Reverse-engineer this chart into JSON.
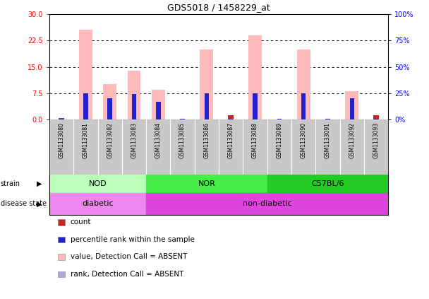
{
  "title": "GDS5018 / 1458229_at",
  "samples": [
    "GSM1133080",
    "GSM1133081",
    "GSM1133082",
    "GSM1133083",
    "GSM1133084",
    "GSM1133085",
    "GSM1133086",
    "GSM1133087",
    "GSM1133088",
    "GSM1133089",
    "GSM1133090",
    "GSM1133091",
    "GSM1133092",
    "GSM1133093"
  ],
  "count_values": [
    0.35,
    0.0,
    0.0,
    0.0,
    0.0,
    0.0,
    0.0,
    1.2,
    0.0,
    0.0,
    0.0,
    0.0,
    0.0,
    1.3
  ],
  "rank_values_pct": [
    0.5,
    25,
    20,
    24,
    17,
    1,
    25,
    1,
    25,
    1,
    25,
    0.5,
    20,
    1
  ],
  "value_absent": [
    0.0,
    25.5,
    10.0,
    14.0,
    8.5,
    0.0,
    20.0,
    0.0,
    24.0,
    0.0,
    20.0,
    0.0,
    8.0,
    0.0
  ],
  "rank_absent_pct": [
    0,
    0,
    0,
    0,
    0,
    0,
    0,
    0,
    0,
    0,
    0,
    0,
    0,
    0
  ],
  "ylim_left": [
    0,
    30
  ],
  "ylim_right": [
    0,
    100
  ],
  "yticks_left": [
    0,
    7.5,
    15,
    22.5,
    30
  ],
  "yticks_right": [
    0,
    25,
    50,
    75,
    100
  ],
  "strain_groups": [
    {
      "label": "NOD",
      "start": 0,
      "end": 4,
      "color": "#BBFFBB"
    },
    {
      "label": "NOR",
      "start": 4,
      "end": 9,
      "color": "#44EE44"
    },
    {
      "label": "C57BL/6",
      "start": 9,
      "end": 14,
      "color": "#22CC22"
    }
  ],
  "disease_groups": [
    {
      "label": "diabetic",
      "start": 0,
      "end": 4,
      "color": "#EE88EE"
    },
    {
      "label": "non-diabetic",
      "start": 4,
      "end": 14,
      "color": "#DD44DD"
    }
  ],
  "color_count": "#CC2222",
  "color_rank": "#2222CC",
  "color_value_absent": "#FFBBBB",
  "color_rank_absent": "#AAAADD",
  "sample_bg_color": "#C8C8C8",
  "legend_items": [
    {
      "color": "#CC2222",
      "label": "count"
    },
    {
      "color": "#2222CC",
      "label": "percentile rank within the sample"
    },
    {
      "color": "#FFBBBB",
      "label": "value, Detection Call = ABSENT"
    },
    {
      "color": "#AAAADD",
      "label": "rank, Detection Call = ABSENT"
    }
  ]
}
